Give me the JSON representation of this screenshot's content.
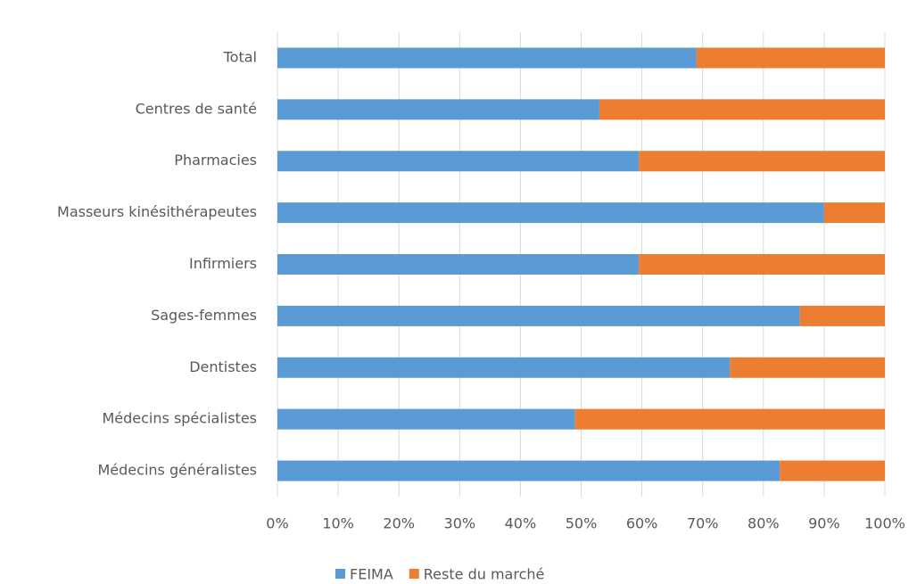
{
  "chart_data": {
    "type": "stacked-barh",
    "categories": [
      "Total",
      "Centres de santé",
      "Pharmacies",
      "Masseurs kinésithérapeutes",
      "Infirmiers",
      "Sages-femmes",
      "Dentistes",
      "Médecins spécialistes",
      "Médecins généralistes"
    ],
    "series": [
      {
        "name": "FEIMA",
        "color": "#5b9bd5",
        "values": [
          69,
          53,
          59.5,
          90,
          59.5,
          86,
          74.5,
          49,
          82.7
        ]
      },
      {
        "name": "Reste du marché",
        "color": "#ed7d31",
        "values": [
          31,
          47,
          40.5,
          10,
          40.5,
          14,
          25.5,
          51,
          17.3
        ]
      }
    ],
    "xlim": [
      0,
      100
    ],
    "xticks": [
      {
        "value": 0,
        "label": "0%"
      },
      {
        "value": 10,
        "label": "10%"
      },
      {
        "value": 20,
        "label": "20%"
      },
      {
        "value": 30,
        "label": "30%"
      },
      {
        "value": 40,
        "label": "40%"
      },
      {
        "value": 50,
        "label": "50%"
      },
      {
        "value": 60,
        "label": "60%"
      },
      {
        "value": 70,
        "label": "70%"
      },
      {
        "value": 80,
        "label": "80%"
      },
      {
        "value": 90,
        "label": "90%"
      },
      {
        "value": 100,
        "label": "100%"
      }
    ],
    "grid": true,
    "legend": "bottom"
  }
}
